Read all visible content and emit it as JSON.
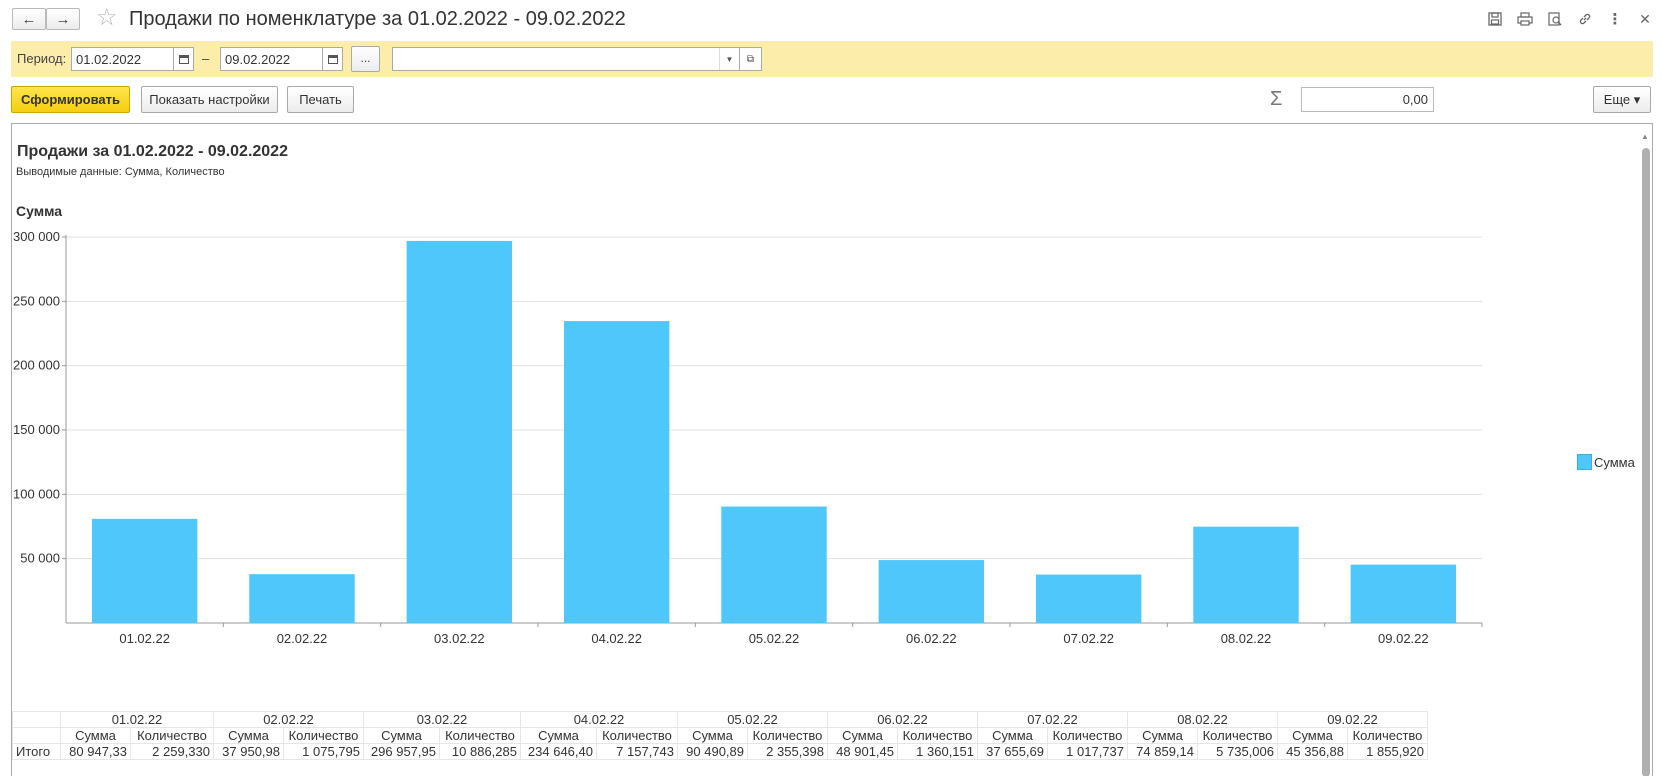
{
  "window": {
    "title": "Продажи по номенклатуре за 01.02.2022 - 09.02.2022",
    "back_icon": "arrow-left-icon",
    "forward_icon": "arrow-right-icon",
    "favorite_icon": "star-icon",
    "toolbar_icons": [
      "save-icon",
      "print-icon",
      "preview-icon",
      "link-icon",
      "more-vertical-icon",
      "close-icon"
    ]
  },
  "filters": {
    "period_label": "Период:",
    "date_from": "01.02.2022",
    "dash": "–",
    "date_to": "09.02.2022",
    "dots_label": "...",
    "selector_value": ""
  },
  "actions": {
    "generate_label": "Сформировать",
    "settings_label": "Показать настройки",
    "print_label": "Печать",
    "sum_icon": "Σ",
    "sum_value": "0,00",
    "more_label": "Еще ▾"
  },
  "report": {
    "title": "Продажи за 01.02.2022 - 09.02.2022",
    "subtitle": "Выводимые данные:  Сумма, Количество",
    "section": "Сумма"
  },
  "chart_data": {
    "type": "bar",
    "categories": [
      "01.02.22",
      "02.02.22",
      "03.02.22",
      "04.02.22",
      "05.02.22",
      "06.02.22",
      "07.02.22",
      "08.02.22",
      "09.02.22"
    ],
    "series": [
      {
        "name": "Сумма",
        "values": [
          80947.33,
          37950.98,
          296957.95,
          234646.4,
          90490.89,
          48901.45,
          37655.69,
          74859.14,
          45356.88
        ],
        "color": "#4fc7fb"
      }
    ],
    "yticks": [
      50000,
      100000,
      150000,
      200000,
      250000,
      300000
    ],
    "ytick_labels": [
      "50 000",
      "100 000",
      "150 000",
      "200 000",
      "250 000",
      "300 000"
    ],
    "ylim": [
      0,
      300000
    ],
    "grid": true,
    "legend": "right"
  },
  "table": {
    "row_label": "Итого",
    "sub_headers": [
      "Сумма",
      "Количество"
    ],
    "columns": [
      {
        "date": "01.02.22",
        "sum": "80 947,33",
        "qty": "2 259,330"
      },
      {
        "date": "02.02.22",
        "sum": "37 950,98",
        "qty": "1 075,795"
      },
      {
        "date": "03.02.22",
        "sum": "296 957,95",
        "qty": "10 886,285"
      },
      {
        "date": "04.02.22",
        "sum": "234 646,40",
        "qty": "7 157,743"
      },
      {
        "date": "05.02.22",
        "sum": "90 490,89",
        "qty": "2 355,398"
      },
      {
        "date": "06.02.22",
        "sum": "48 901,45",
        "qty": "1 360,151"
      },
      {
        "date": "07.02.22",
        "sum": "37 655,69",
        "qty": "1 017,737"
      },
      {
        "date": "08.02.22",
        "sum": "74 859,14",
        "qty": "5 735,006"
      },
      {
        "date": "09.02.22",
        "sum": "45 356,88",
        "qty": "1 855,920"
      }
    ]
  }
}
